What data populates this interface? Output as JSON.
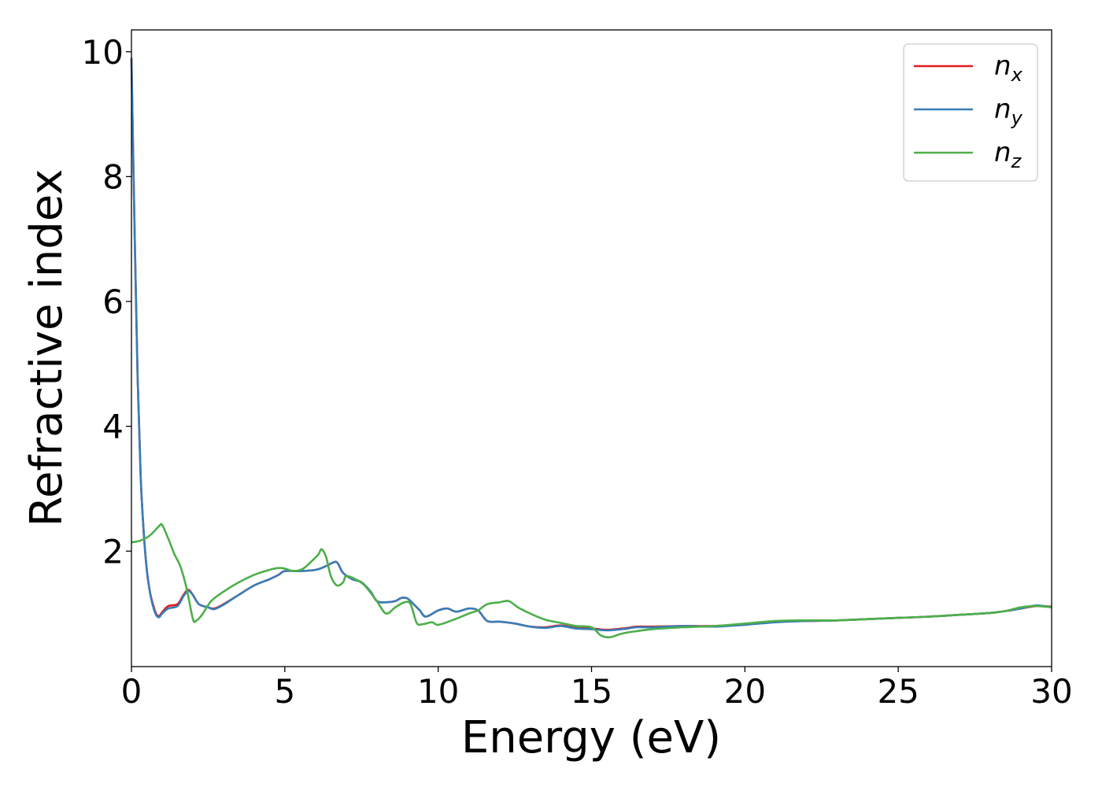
{
  "chart_data": {
    "type": "line",
    "xlabel": "Energy (eV)",
    "ylabel": "Refractive index",
    "xlim": [
      0,
      30
    ],
    "ylim": [
      0.15,
      10.35
    ],
    "xticks": [
      0,
      5,
      10,
      15,
      20,
      25,
      30
    ],
    "xtick_labels": [
      "0",
      "5",
      "10",
      "15",
      "20",
      "25",
      "30"
    ],
    "yticks": [
      2,
      4,
      6,
      8,
      10
    ],
    "ytick_labels": [
      "2",
      "4",
      "6",
      "8",
      "10"
    ],
    "grid": false,
    "legend_placement": "top-right",
    "series": [
      {
        "name": "n_x",
        "legend_base": "n",
        "legend_sub": "x",
        "color": "#e41a1c",
        "x": [
          0,
          0.1,
          0.2,
          0.3,
          0.4,
          0.5,
          0.6,
          0.7,
          0.8,
          0.9,
          1.0,
          1.2,
          1.5,
          1.7,
          1.85,
          2.0,
          2.2,
          2.5,
          2.7,
          3.0,
          3.5,
          4.0,
          4.5,
          4.8,
          5.0,
          5.5,
          6.0,
          6.3,
          6.5,
          6.7,
          6.9,
          7.2,
          7.5,
          7.8,
          8.0,
          8.3,
          8.6,
          8.8,
          9.0,
          9.2,
          9.4,
          9.6,
          10.0,
          10.3,
          10.6,
          11.0,
          11.3,
          11.6,
          12.0,
          12.5,
          13.0,
          13.5,
          14.0,
          14.5,
          15.0,
          15.5,
          16.0,
          16.5,
          17.0,
          18.0,
          19.0,
          20.0,
          21.0,
          22.0,
          23.0,
          24.0,
          25.0,
          26.0,
          27.0,
          28.0,
          28.5,
          29.0,
          29.5,
          30.0
        ],
        "values": [
          9.9,
          7.2,
          4.8,
          3.2,
          2.3,
          1.7,
          1.35,
          1.15,
          1.0,
          0.96,
          1.02,
          1.12,
          1.15,
          1.3,
          1.38,
          1.3,
          1.15,
          1.1,
          1.08,
          1.15,
          1.3,
          1.45,
          1.55,
          1.62,
          1.68,
          1.68,
          1.7,
          1.75,
          1.8,
          1.82,
          1.65,
          1.55,
          1.5,
          1.35,
          1.2,
          1.18,
          1.2,
          1.25,
          1.24,
          1.15,
          1.05,
          0.95,
          1.05,
          1.08,
          1.03,
          1.08,
          1.05,
          0.88,
          0.87,
          0.84,
          0.79,
          0.78,
          0.81,
          0.77,
          0.76,
          0.74,
          0.76,
          0.79,
          0.79,
          0.8,
          0.8,
          0.83,
          0.87,
          0.88,
          0.89,
          0.91,
          0.93,
          0.95,
          0.98,
          1.01,
          1.04,
          1.08,
          1.12,
          1.11
        ]
      },
      {
        "name": "n_y",
        "legend_base": "n",
        "legend_sub": "y",
        "color": "#377eb8",
        "x": [
          0,
          0.1,
          0.2,
          0.3,
          0.4,
          0.5,
          0.6,
          0.7,
          0.8,
          0.9,
          1.0,
          1.2,
          1.5,
          1.7,
          1.85,
          2.0,
          2.2,
          2.5,
          2.7,
          3.0,
          3.5,
          4.0,
          4.5,
          4.8,
          5.0,
          5.5,
          6.0,
          6.3,
          6.5,
          6.7,
          6.9,
          7.2,
          7.5,
          7.8,
          8.0,
          8.3,
          8.6,
          8.8,
          9.0,
          9.2,
          9.4,
          9.6,
          10.0,
          10.3,
          10.6,
          11.0,
          11.3,
          11.6,
          12.0,
          12.5,
          13.0,
          13.5,
          14.0,
          14.5,
          15.0,
          15.5,
          16.0,
          16.5,
          17.0,
          18.0,
          19.0,
          20.0,
          21.0,
          22.0,
          23.0,
          24.0,
          25.0,
          26.0,
          27.0,
          28.0,
          28.5,
          29.0,
          29.5,
          30.0
        ],
        "values": [
          9.9,
          7.2,
          4.8,
          3.2,
          2.3,
          1.7,
          1.35,
          1.12,
          0.98,
          0.94,
          1.0,
          1.08,
          1.12,
          1.28,
          1.36,
          1.3,
          1.15,
          1.1,
          1.07,
          1.14,
          1.3,
          1.45,
          1.55,
          1.62,
          1.68,
          1.68,
          1.7,
          1.75,
          1.8,
          1.82,
          1.65,
          1.55,
          1.5,
          1.35,
          1.2,
          1.18,
          1.2,
          1.25,
          1.24,
          1.15,
          1.05,
          0.95,
          1.05,
          1.08,
          1.03,
          1.08,
          1.05,
          0.88,
          0.87,
          0.84,
          0.79,
          0.77,
          0.8,
          0.76,
          0.75,
          0.73,
          0.75,
          0.78,
          0.78,
          0.8,
          0.79,
          0.82,
          0.86,
          0.88,
          0.89,
          0.91,
          0.93,
          0.95,
          0.98,
          1.01,
          1.04,
          1.08,
          1.13,
          1.1
        ]
      },
      {
        "name": "n_z",
        "legend_base": "n",
        "legend_sub": "z",
        "color": "#4daf4a",
        "x": [
          0,
          0.3,
          0.6,
          0.9,
          1.0,
          1.2,
          1.4,
          1.6,
          1.8,
          2.0,
          2.1,
          2.3,
          2.6,
          3.0,
          3.5,
          4.0,
          4.5,
          4.8,
          5.0,
          5.3,
          5.6,
          5.9,
          6.1,
          6.2,
          6.35,
          6.5,
          6.7,
          6.9,
          7.0,
          7.3,
          7.6,
          8.0,
          8.3,
          8.6,
          8.9,
          9.1,
          9.3,
          9.5,
          9.8,
          10.0,
          10.5,
          11.0,
          11.3,
          11.6,
          12.0,
          12.3,
          12.6,
          13.0,
          13.5,
          14.0,
          14.5,
          15.0,
          15.3,
          15.6,
          16.0,
          16.5,
          17.0,
          18.0,
          19.0,
          20.0,
          21.0,
          22.0,
          23.0,
          24.0,
          25.0,
          26.0,
          27.0,
          28.0,
          28.5,
          29.0,
          29.5,
          30.0
        ],
        "values": [
          2.14,
          2.17,
          2.25,
          2.4,
          2.42,
          2.2,
          1.95,
          1.75,
          1.4,
          0.92,
          0.88,
          0.98,
          1.2,
          1.35,
          1.5,
          1.62,
          1.7,
          1.73,
          1.72,
          1.68,
          1.72,
          1.85,
          1.95,
          2.03,
          1.9,
          1.6,
          1.45,
          1.5,
          1.6,
          1.55,
          1.45,
          1.2,
          1.0,
          1.1,
          1.18,
          1.15,
          0.85,
          0.83,
          0.86,
          0.82,
          0.9,
          1.0,
          1.05,
          1.15,
          1.18,
          1.2,
          1.1,
          1.0,
          0.9,
          0.85,
          0.8,
          0.78,
          0.65,
          0.62,
          0.68,
          0.72,
          0.75,
          0.78,
          0.8,
          0.84,
          0.88,
          0.89,
          0.89,
          0.91,
          0.93,
          0.95,
          0.98,
          1.01,
          1.04,
          1.1,
          1.12,
          1.1
        ]
      }
    ]
  }
}
